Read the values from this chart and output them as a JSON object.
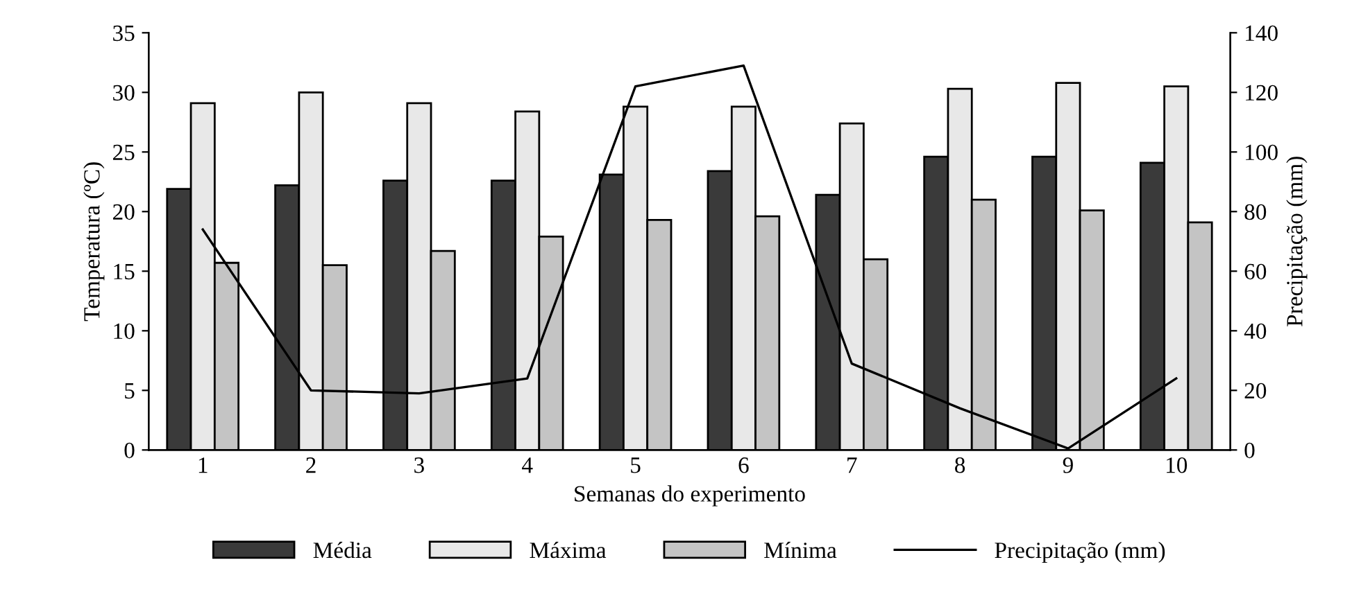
{
  "chart_data": {
    "type": "bar",
    "xlabel": "Semanas do experimento",
    "ylabel": "Temperatura (ºC)",
    "y2label": "Precipitação (mm)",
    "categories": [
      "1",
      "2",
      "3",
      "4",
      "5",
      "6",
      "7",
      "8",
      "9",
      "10"
    ],
    "series": [
      {
        "name": "Média",
        "color": "#3a3a3a",
        "values": [
          21.9,
          22.2,
          22.6,
          22.6,
          23.1,
          23.4,
          21.4,
          24.6,
          24.6,
          24.1
        ]
      },
      {
        "name": "Máxima",
        "color": "#e8e8e8",
        "values": [
          29.1,
          30.0,
          29.1,
          28.4,
          28.8,
          28.8,
          27.4,
          30.3,
          30.8,
          30.5
        ]
      },
      {
        "name": "Mínima",
        "color": "#c4c4c4",
        "values": [
          15.7,
          15.5,
          16.7,
          17.9,
          19.3,
          19.6,
          16.0,
          21.0,
          20.1,
          19.1
        ]
      },
      {
        "name": "Precipitação (mm)",
        "type": "line",
        "axis": "y2",
        "color": "#000000",
        "values": [
          74,
          20,
          19,
          24,
          122,
          129,
          29,
          14,
          0.5,
          24
        ]
      }
    ],
    "ylim": [
      0,
      35
    ],
    "yticks": [
      0,
      5,
      10,
      15,
      20,
      25,
      30,
      35
    ],
    "y2lim": [
      0,
      140
    ],
    "y2ticks": [
      0,
      20,
      40,
      60,
      80,
      100,
      120,
      140
    ],
    "grid": false,
    "legend": "bottom",
    "marker": "none",
    "line_style": "solid"
  }
}
